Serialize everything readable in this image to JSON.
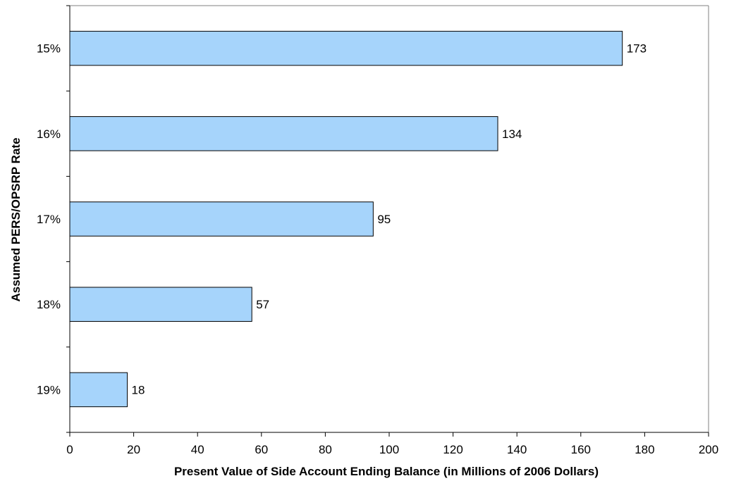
{
  "chart_data": {
    "type": "bar",
    "orientation": "horizontal",
    "categories": [
      "15%",
      "16%",
      "17%",
      "18%",
      "19%"
    ],
    "values": [
      173,
      134,
      95,
      57,
      18
    ],
    "data_labels": [
      "173",
      "134",
      "95",
      "57",
      "18"
    ],
    "xlabel": "Present Value of Side Account Ending Balance (in Millions of 2006 Dollars)",
    "ylabel": "Assumed PERS/OPSRP Rate",
    "xlim": [
      0,
      200
    ],
    "xticks": [
      0,
      20,
      40,
      60,
      80,
      100,
      120,
      140,
      160,
      180,
      200
    ],
    "xtick_labels": [
      "0",
      "20",
      "40",
      "60",
      "80",
      "100",
      "120",
      "140",
      "160",
      "180",
      "200"
    ],
    "grid": false,
    "legend": "none",
    "colors": {
      "bar_fill": "#a6d4fb",
      "bar_stroke": "#000000",
      "axis": "#000000",
      "plot_border": "#808080"
    }
  }
}
